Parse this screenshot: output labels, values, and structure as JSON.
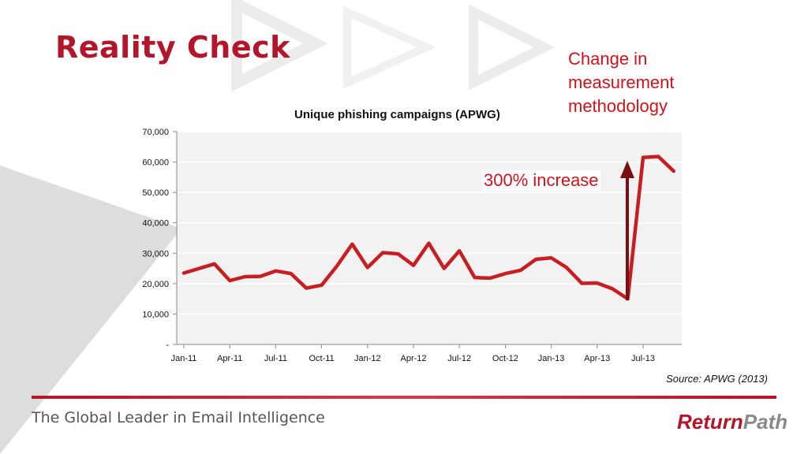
{
  "slide": {
    "title": "Reality Check",
    "callout_method_change": "Change in measurement methodology",
    "callout_increase": "300% increase",
    "source": "Source:  APWG (2013)",
    "tagline": "The Global Leader in Email Intelligence",
    "logo_word1": "Return",
    "logo_word2": "Path"
  },
  "colors": {
    "brand_red": "#b5152b",
    "line_red": "#c81e22",
    "arrow_dark_red": "#7a0f12",
    "plot_bg": "#f2f2f2"
  },
  "chart_data": {
    "type": "line",
    "title": "Unique phishing campaigns (APWG)",
    "xlabel": "",
    "ylabel": "",
    "ylim": [
      0,
      70000
    ],
    "yticks": [
      "-",
      "10,000",
      "20,000",
      "30,000",
      "40,000",
      "50,000",
      "60,000",
      "70,000"
    ],
    "x_tick_labels": [
      "Jan-11",
      "Apr-11",
      "Jul-11",
      "Oct-11",
      "Jan-12",
      "Apr-12",
      "Jul-12",
      "Oct-12",
      "Jan-13",
      "Apr-13",
      "Jul-13"
    ],
    "grid": true,
    "legend": "none",
    "series": [
      {
        "x": [
          "Jan-11",
          "Feb-11",
          "Mar-11",
          "Apr-11",
          "May-11",
          "Jun-11",
          "Jul-11",
          "Aug-11",
          "Sep-11",
          "Oct-11",
          "Nov-11",
          "Dec-11",
          "Jan-12",
          "Feb-12",
          "Mar-12",
          "Apr-12",
          "May-12",
          "Jun-12",
          "Jul-12",
          "Aug-12",
          "Sep-12",
          "Oct-12",
          "Nov-12",
          "Dec-12",
          "Jan-13",
          "Feb-13",
          "Mar-13",
          "Apr-13",
          "May-13",
          "Jun-13",
          "Jul-13",
          "Aug-13",
          "Sep-13"
        ],
        "values": [
          23500,
          25000,
          26500,
          21000,
          22300,
          22400,
          24200,
          23300,
          18500,
          19500,
          25800,
          33000,
          25300,
          30200,
          29800,
          26000,
          33300,
          25000,
          30800,
          22000,
          21800,
          23300,
          24400,
          28000,
          28500,
          25300,
          20100,
          20200,
          18300,
          15000,
          61500,
          61800,
          57000
        ]
      }
    ]
  }
}
